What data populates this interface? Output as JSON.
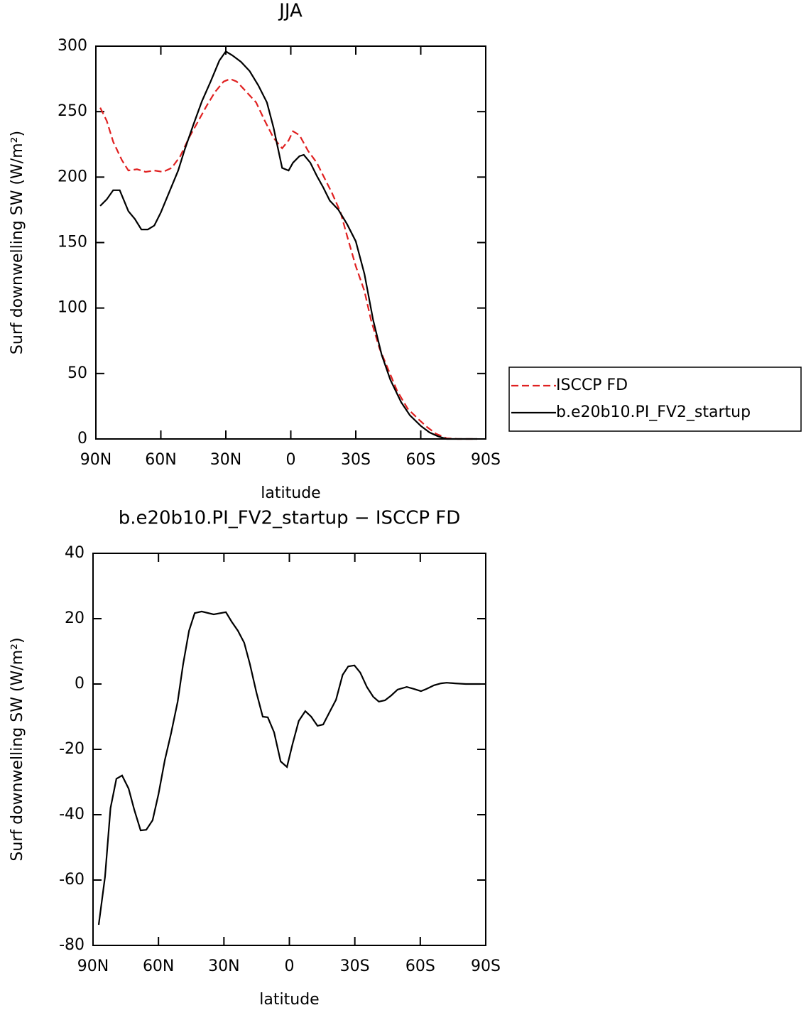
{
  "chart_data": [
    {
      "type": "line",
      "title": "JJA",
      "xlabel": "latitude",
      "ylabel": "Surf downwelling SW (W/m²)",
      "xlim": [
        90,
        -90
      ],
      "ylim": [
        0,
        300
      ],
      "xticks": [
        {
          "value": 90,
          "label": "90N"
        },
        {
          "value": 60,
          "label": "60N"
        },
        {
          "value": 30,
          "label": "30N"
        },
        0,
        {
          "value": -30,
          "label": "30S"
        },
        {
          "value": -60,
          "label": "60S"
        },
        {
          "value": -90,
          "label": "90S"
        }
      ],
      "yticks": [
        0,
        50,
        100,
        150,
        200,
        250,
        300
      ],
      "legend": "right",
      "series": [
        {
          "name": "ISCCP FD",
          "color": "#e02020",
          "linestyle": "dashed",
          "x": [
            88,
            85,
            82,
            78,
            75,
            71,
            67,
            63,
            59,
            55,
            51,
            47,
            43,
            39,
            35,
            31,
            28,
            25,
            21,
            16,
            12,
            8,
            4,
            1,
            -1,
            -4,
            -8,
            -12,
            -15,
            -19,
            -23,
            -26,
            -30,
            -34,
            -37,
            -41,
            -45,
            -49,
            -54,
            -59,
            -63,
            -67,
            -72,
            -77,
            -82,
            -86
          ],
          "values": [
            253,
            243,
            227,
            213,
            205,
            206,
            204,
            205,
            204,
            207,
            216,
            230,
            242,
            254,
            265,
            273,
            275,
            273,
            266,
            257,
            243,
            230,
            222,
            228,
            235,
            232,
            220,
            211,
            201,
            188,
            173,
            155,
            132,
            113,
            91,
            69,
            53,
            37,
            23,
            15,
            9,
            4,
            0.5,
            0,
            0,
            0
          ]
        },
        {
          "name": "b.e20b10.PI_FV2_startup",
          "color": "#000000",
          "linestyle": "solid",
          "x": [
            88,
            85,
            82,
            79,
            75,
            72,
            69,
            66,
            63,
            60,
            56,
            52,
            49,
            45,
            41,
            37,
            33,
            30,
            27,
            23,
            19,
            15,
            11,
            8,
            4,
            1,
            -1,
            -4,
            -6,
            -9,
            -12,
            -15,
            -18,
            -22,
            -26,
            -30,
            -34,
            -38,
            -42,
            -46,
            -51,
            -55,
            -60,
            -64,
            -68,
            -72,
            -77,
            -81,
            -86
          ],
          "values": [
            178,
            183,
            190,
            190,
            174,
            168,
            160,
            160,
            163,
            173,
            189,
            205,
            221,
            240,
            258,
            273,
            289,
            296,
            293,
            288,
            281,
            270,
            257,
            238,
            207,
            205,
            211,
            216,
            217,
            211,
            201,
            192,
            182,
            175,
            164,
            151,
            126,
            91,
            64,
            45,
            28,
            18,
            10,
            5,
            2,
            0,
            0,
            0,
            0
          ]
        }
      ]
    },
    {
      "type": "line",
      "title": "b.e20b10.PI_FV2_startup − ISCCP FD",
      "xlabel": "latitude",
      "ylabel": "Surf downwelling SW (W/m²)",
      "xlim": [
        90,
        -90
      ],
      "ylim": [
        -80,
        40
      ],
      "xticks": [
        {
          "value": 90,
          "label": "90N"
        },
        {
          "value": 60,
          "label": "60N"
        },
        {
          "value": 30,
          "label": "30N"
        },
        0,
        {
          "value": -30,
          "label": "30S"
        },
        {
          "value": -60,
          "label": "60S"
        },
        {
          "value": -90,
          "label": "90S"
        }
      ],
      "yticks": [
        -80,
        -60,
        -40,
        -20,
        0,
        20,
        40
      ],
      "series": [
        {
          "color": "#000000",
          "linestyle": "solid",
          "x": [
            87.4,
            84.5,
            82,
            79.3,
            76.7,
            73.7,
            71.1,
            68.2,
            65.6,
            62.7,
            60,
            57.1,
            54.2,
            51.2,
            48.7,
            46,
            43.4,
            40.2,
            34.7,
            29.1,
            26.5,
            23.6,
            20.7,
            18.1,
            15.1,
            12.2,
            9.9,
            7,
            4,
            1.1,
            -1.4,
            -4.3,
            -7.3,
            -10,
            -12.9,
            -15.5,
            -18.5,
            -21.4,
            -24.4,
            -27,
            -29.8,
            -32.5,
            -35.5,
            -38.4,
            -41,
            -43.8,
            -46.7,
            -49.6,
            -53.8,
            -57.1,
            -60.3,
            -62.9,
            -66.3,
            -69.5,
            -72.1,
            -76,
            -80.9,
            -87.5
          ],
          "values": [
            -73.7,
            -59,
            -38,
            -29,
            -28,
            -32,
            -38.5,
            -44.8,
            -44.6,
            -41.7,
            -33.7,
            -23.3,
            -15,
            -5.4,
            6.1,
            16.3,
            21.7,
            22.2,
            21.3,
            22,
            19.1,
            16.3,
            12.6,
            6.1,
            -2.6,
            -10,
            -10.2,
            -14.8,
            -23.7,
            -25.4,
            -18.5,
            -11.3,
            -8.3,
            -10,
            -12.8,
            -12.4,
            -8.5,
            -4.8,
            2.8,
            5.4,
            5.7,
            3.5,
            -0.9,
            -3.9,
            -5.4,
            -5,
            -3.5,
            -1.7,
            -0.9,
            -1.5,
            -2.2,
            -1.5,
            -0.4,
            0.2,
            0.4,
            0.2,
            0,
            0
          ]
        }
      ]
    }
  ]
}
